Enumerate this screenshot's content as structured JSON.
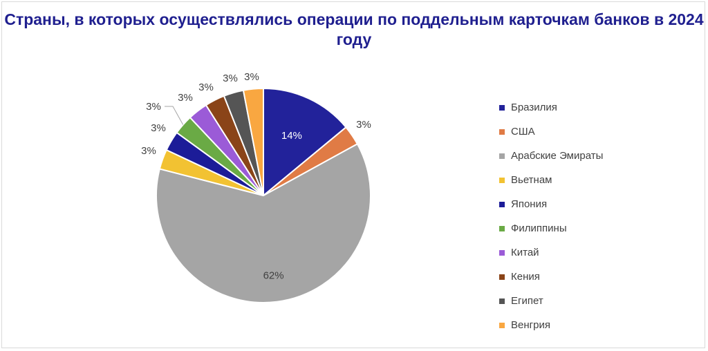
{
  "chart_data": {
    "type": "pie",
    "title": "Страны, в которых осуществлялись операции по поддельным карточкам банков в 2024 году",
    "legend_position": "right",
    "slices": [
      {
        "label": "Бразилия",
        "value": 14,
        "value_label": "14%",
        "color": "#22229a",
        "label_inside": true
      },
      {
        "label": "США",
        "value": 3,
        "value_label": "3%",
        "color": "#e07b45",
        "label_inside": false
      },
      {
        "label": "Арабские Эмираты",
        "value": 62,
        "value_label": "62%",
        "color": "#a5a5a5",
        "label_inside": true
      },
      {
        "label": "Вьетнам",
        "value": 3,
        "value_label": "3%",
        "color": "#f2c232",
        "label_inside": false
      },
      {
        "label": "Япония",
        "value": 3,
        "value_label": "3%",
        "color": "#1c1c98",
        "label_inside": false
      },
      {
        "label": "Филиппины",
        "value": 3,
        "value_label": "3%",
        "color": "#6aaa45",
        "label_inside": false
      },
      {
        "label": "Китай",
        "value": 3,
        "value_label": "3%",
        "color": "#9b5bd7",
        "label_inside": false
      },
      {
        "label": "Кения",
        "value": 3,
        "value_label": "3%",
        "color": "#8a4418",
        "label_inside": false
      },
      {
        "label": "Египет",
        "value": 3,
        "value_label": "3%",
        "color": "#555555",
        "label_inside": false
      },
      {
        "label": "Венгрия",
        "value": 3,
        "value_label": "3%",
        "color": "#f9a741",
        "label_inside": false
      }
    ]
  }
}
